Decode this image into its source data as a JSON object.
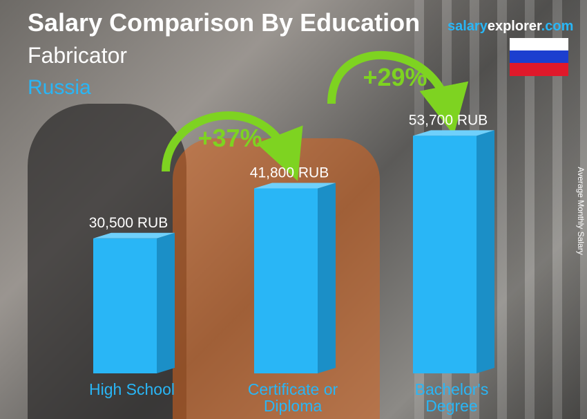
{
  "chart_data": {
    "type": "bar",
    "title": "Salary Comparison By Education",
    "subtitle": "Fabricator",
    "country": "Russia",
    "brand": [
      "salary",
      "explorer",
      ".com"
    ],
    "y_label": "Average Monthly Salary",
    "categories": [
      "High School",
      "Certificate or Diploma",
      "Bachelor's Degree"
    ],
    "values": [
      30500,
      41800,
      53700
    ],
    "value_labels": [
      "30,500 RUB",
      "41,800 RUB",
      "53,700 RUB"
    ],
    "color": "#29b6f6",
    "annotations": [
      "+37%",
      "+29%"
    ]
  }
}
